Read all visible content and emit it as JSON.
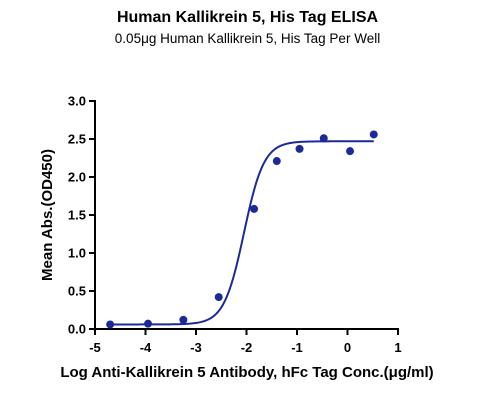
{
  "chart_data": {
    "type": "scatter",
    "title": "Human Kallikrein 5, His Tag ELISA",
    "subtitle": "0.05μg Human Kallikrein 5, His Tag Per Well",
    "xlabel": "Log Anti-Kallikrein 5 Antibody, hFc Tag Conc.(μg/ml)",
    "ylabel": "Mean Abs.(OD450)",
    "xlim": [
      -5,
      1
    ],
    "ylim": [
      0,
      3.0
    ],
    "xticks": [
      "-5",
      "-4",
      "-3",
      "-2",
      "-1",
      "0",
      "1"
    ],
    "yticks": [
      "0.0",
      "0.5",
      "1.0",
      "1.5",
      "2.0",
      "2.5",
      "3.0"
    ],
    "grid": false,
    "points": {
      "x": [
        -4.7,
        -3.95,
        -3.25,
        -2.55,
        -1.85,
        -1.4,
        -0.95,
        -0.47,
        0.05,
        0.52
      ],
      "y": [
        0.06,
        0.07,
        0.12,
        0.42,
        1.58,
        2.21,
        2.37,
        2.51,
        2.34,
        2.56
      ]
    },
    "fit_curve": {
      "model": "4PL",
      "bottom": 0.06,
      "top": 2.47,
      "logEC50": -2.05,
      "hill": 2.2
    },
    "colors": {
      "series": "#1c2a99",
      "axis": "#000000"
    }
  }
}
